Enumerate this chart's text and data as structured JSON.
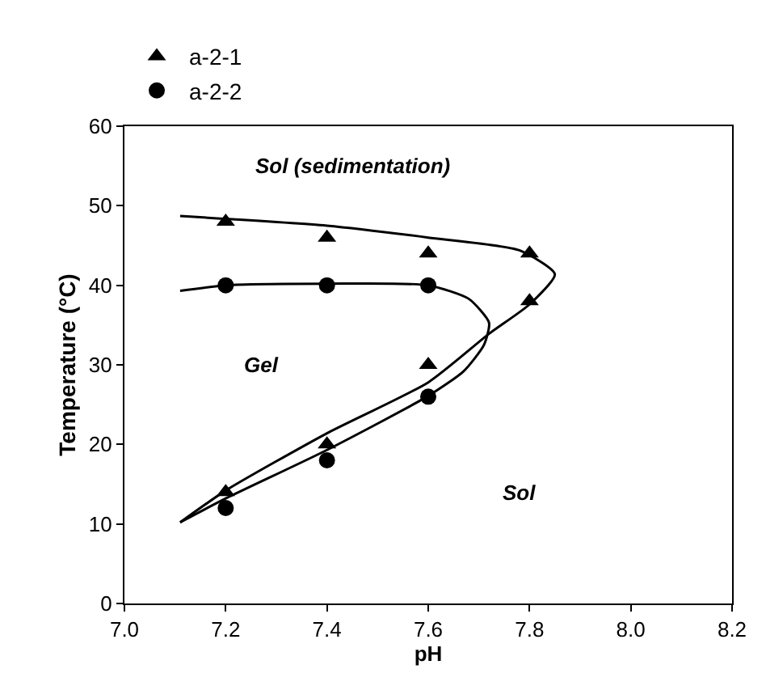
{
  "chart_data": {
    "type": "scatter",
    "xlabel": "pH",
    "ylabel": "Temperature (°C)",
    "xlim": [
      7.0,
      8.2
    ],
    "xticks": [
      {
        "value": 7.0,
        "label": "7.0"
      },
      7.2,
      7.4,
      7.6,
      7.8,
      {
        "value": 8.0,
        "label": "8.0"
      },
      8.2
    ],
    "ylim": [
      0,
      60
    ],
    "yticks": [
      0,
      10,
      20,
      30,
      40,
      50,
      60
    ],
    "legend": "top left",
    "annotations": [
      "Sol (sedimentation)",
      "Gel",
      "Sol"
    ],
    "series": [
      {
        "name": "a-2-1",
        "color": "#000000",
        "marker": "triangle",
        "x": [
          7.2,
          7.4,
          7.6,
          7.8,
          7.8,
          7.6,
          7.4,
          7.2
        ],
        "values": [
          48,
          46,
          44,
          44,
          38,
          30,
          20,
          14
        ]
      },
      {
        "name": "a-2-2",
        "color": "#000000",
        "marker": "circle",
        "x": [
          7.2,
          7.4,
          7.6,
          7.6,
          7.4,
          7.2
        ],
        "values": [
          40,
          40,
          40,
          26,
          18,
          12
        ]
      },
      {
        "type": "line",
        "color": "#000000",
        "x": [
          7.11,
          7.4,
          7.6,
          7.78,
          7.85,
          7.8,
          7.72,
          7.6,
          7.4,
          7.2,
          7.11
        ],
        "values": [
          48.7,
          47.5,
          46,
          44.4,
          41.4,
          37.6,
          33.9,
          27.8,
          21.4,
          14.2,
          10.2
        ]
      },
      {
        "type": "line",
        "color": "#000000",
        "x": [
          7.11,
          7.2,
          7.4,
          7.6,
          7.68,
          7.72,
          7.71,
          7.67,
          7.6,
          7.4,
          7.2,
          7.11
        ],
        "values": [
          39.3,
          40,
          40.2,
          40,
          38.3,
          35.3,
          32.5,
          29.2,
          26.1,
          19.3,
          13.2,
          10.2
        ]
      }
    ]
  }
}
